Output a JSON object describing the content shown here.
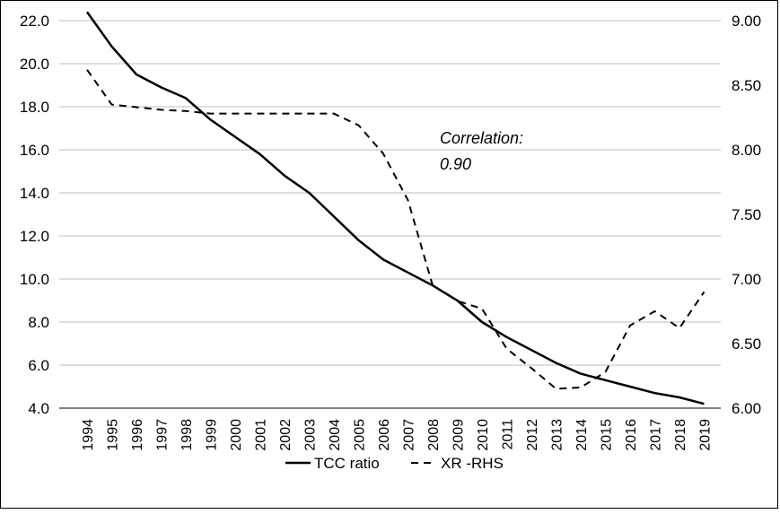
{
  "chart_data": {
    "type": "line",
    "title": "",
    "xlabel": "",
    "ylabel": "",
    "x": [
      "1994",
      "1995",
      "1996",
      "1997",
      "1998",
      "1999",
      "2000",
      "2001",
      "2002",
      "2003",
      "2004",
      "2005",
      "2006",
      "2007",
      "2008",
      "2009",
      "2010",
      "2011",
      "2012",
      "2013",
      "2014",
      "2015",
      "2016",
      "2017",
      "2018",
      "2019"
    ],
    "series": [
      {
        "name": "TCC ratio",
        "axis": "left",
        "style": "solid",
        "color": "#000000",
        "values": [
          22.4,
          20.8,
          19.5,
          18.9,
          18.4,
          17.4,
          16.6,
          15.8,
          14.8,
          14.0,
          12.9,
          11.8,
          10.9,
          10.3,
          9.7,
          9.0,
          8.0,
          7.3,
          6.7,
          6.1,
          5.6,
          5.3,
          5.0,
          4.7,
          4.5,
          4.2
        ]
      },
      {
        "name": "XR -RHS",
        "axis": "right",
        "style": "dashed",
        "color": "#000000",
        "values": [
          8.62,
          8.35,
          8.33,
          8.31,
          8.3,
          8.28,
          8.28,
          8.28,
          8.28,
          8.28,
          8.28,
          8.19,
          7.97,
          7.61,
          6.95,
          6.83,
          6.77,
          6.46,
          6.31,
          6.15,
          6.16,
          6.28,
          6.64,
          6.75,
          6.62,
          6.9
        ]
      }
    ],
    "left_axis": {
      "min": 4.0,
      "max": 22.0,
      "step": 2.0,
      "tick_labels": [
        "4.0",
        "6.0",
        "8.0",
        "10.0",
        "12.0",
        "14.0",
        "16.0",
        "18.0",
        "20.0",
        "22.0"
      ]
    },
    "right_axis": {
      "min": 6.0,
      "max": 9.0,
      "step": 0.5,
      "tick_labels": [
        "6.00",
        "6.50",
        "7.00",
        "7.50",
        "8.00",
        "8.50",
        "9.00"
      ]
    },
    "grid": true,
    "legend_position": "bottom",
    "annotation": {
      "line1": "Correlation:",
      "line2": "0.90"
    }
  }
}
